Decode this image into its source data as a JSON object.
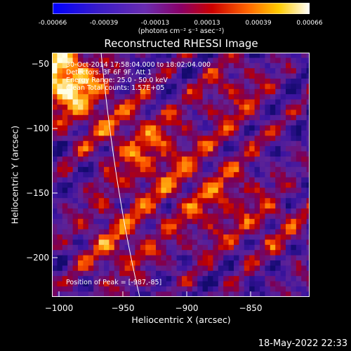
{
  "colorbar": {
    "ticks": [
      "-0.00066",
      "-0.00039",
      "-0.00013",
      "0.00013",
      "0.00039",
      "0.00066"
    ],
    "unit": "(photons cm⁻² s⁻¹ asec⁻²)",
    "range": [
      -0.00066,
      0.00066
    ]
  },
  "chart_data": {
    "type": "heatmap",
    "title": "Reconstructed RHESSI Image",
    "xlabel": "Heliocentric X (arcsec)",
    "ylabel": "Heliocentric Y (arcsec)",
    "x_ticks": [
      "−1000",
      "−950",
      "−900",
      "−850"
    ],
    "y_ticks": [
      "−50",
      "−100",
      "−150",
      "−200"
    ],
    "xlim": [
      -1000,
      -812
    ],
    "ylim": [
      -230,
      -40
    ],
    "colormap": "rainbow-like (blue-purple-red-orange-yellow-white)",
    "annotations": {
      "time_range": "30-Oct-2014 17:58:04.000 to 18:02:04.000",
      "detectors": "Detectors: 3F 6F 9F, Att 1",
      "energy": "Energy Range: 25.0 - 50.0 keV",
      "method": "Clean    Total counts: 1.57E+05",
      "peak": "Position of Peak = [-987,-85]"
    },
    "peak": {
      "x": -987,
      "y": -85
    },
    "limb": "solar limb arc",
    "grid": false
  },
  "timestamp": "18-May-2022 22:33"
}
